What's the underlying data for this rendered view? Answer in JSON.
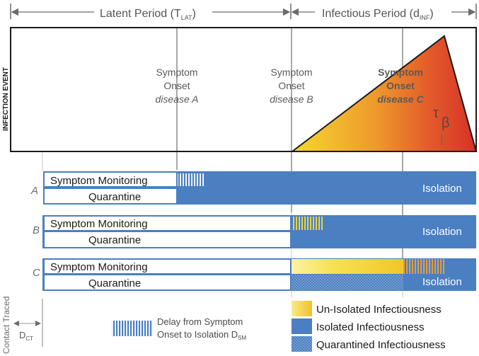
{
  "header": {
    "latent_label": "Latent Period (T",
    "latent_sub": "LAT",
    "infectious_label": "Infectious Period (d",
    "infectious_sub": "INF"
  },
  "infection_event_label": "INFECTION EVENT",
  "onset_labels": {
    "a": {
      "line1": "Symptom",
      "line2": "Onset",
      "line3": "disease A"
    },
    "b": {
      "line1": "Symptom",
      "line2": "Onset",
      "line3": "disease B"
    },
    "c": {
      "line1": "Symptom",
      "line2": "Onset",
      "line3": "disease C"
    }
  },
  "tau_label": "τ",
  "beta_label": "β",
  "rows": [
    {
      "letter": "A",
      "monitoring": "Symptom Monitoring",
      "quarantine": "Quarantine",
      "isolation": "Isolation"
    },
    {
      "letter": "B",
      "monitoring": "Symptom Monitoring",
      "quarantine": "Quarantine",
      "isolation": "Isolation"
    },
    {
      "letter": "C",
      "monitoring": "Symptom Monitoring",
      "quarantine": "Quarantine",
      "isolation": "Isolation"
    }
  ],
  "contact_traced_label": "Contact Traced",
  "dct_label": "D",
  "dct_sub": "CT",
  "delay_legend": {
    "line1": "Delay from Symptom",
    "line2": "Onset to Isolation D",
    "sub": "SM"
  },
  "legend": {
    "unisolated": "Un-Isolated Infectiousness",
    "isolated": "Isolated Infectiousness",
    "quarantined": "Quarantined Infectiousness"
  },
  "colors": {
    "isolation_blue": "#4a7fc1",
    "grad_yellow": "#f5d330",
    "grad_orange": "#e8762a",
    "grad_red": "#d62f2a",
    "gray_line": "#8c8c8c",
    "text_gray": "#555555"
  }
}
